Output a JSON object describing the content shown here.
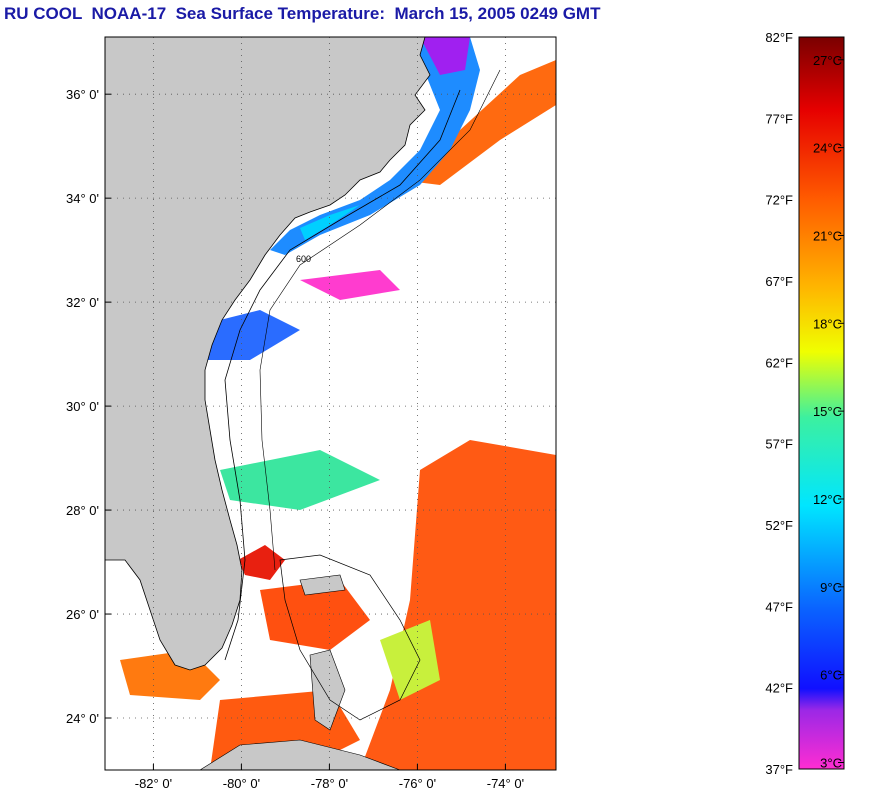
{
  "title": "RU COOL  NOAA-17  Sea Surface Temperature:  March 15, 2005 0249 GMT",
  "map": {
    "lat_labels": [
      {
        "value": 36,
        "text": "36° 0'"
      },
      {
        "value": 34,
        "text": "34° 0'"
      },
      {
        "value": 32,
        "text": "32° 0'"
      },
      {
        "value": 30,
        "text": "30° 0'"
      },
      {
        "value": 28,
        "text": "28° 0'"
      },
      {
        "value": 26,
        "text": "26° 0'"
      },
      {
        "value": 24,
        "text": "24° 0'"
      }
    ],
    "lon_labels": [
      {
        "value": -82,
        "text": "-82° 0'"
      },
      {
        "value": -80,
        "text": "-80° 0'"
      },
      {
        "value": -78,
        "text": "-78° 0'"
      },
      {
        "value": -76,
        "text": "-76° 0'"
      },
      {
        "value": -74,
        "text": "-74° 0'"
      }
    ],
    "lat_range": [
      23.0,
      37.1
    ],
    "lon_range": [
      -83.1,
      -72.85
    ],
    "isobath_label": "600",
    "colors": {
      "land": "#c8c8c8",
      "cloud": "#ffffff",
      "gulf_stream": "#ff5a14",
      "shelf": "#1e8cff"
    }
  },
  "colorbar": {
    "fahrenheit": [
      {
        "value": 82,
        "text": "82°F"
      },
      {
        "value": 77,
        "text": "77°F"
      },
      {
        "value": 72,
        "text": "72°F"
      },
      {
        "value": 67,
        "text": "67°F"
      },
      {
        "value": 62,
        "text": "62°F"
      },
      {
        "value": 57,
        "text": "57°F"
      },
      {
        "value": 52,
        "text": "52°F"
      },
      {
        "value": 47,
        "text": "47°F"
      },
      {
        "value": 42,
        "text": "42°F"
      },
      {
        "value": 37,
        "text": "37°F"
      }
    ],
    "celsius": [
      {
        "value": 27,
        "text": "27°C"
      },
      {
        "value": 24,
        "text": "24°C"
      },
      {
        "value": 21,
        "text": "21°C"
      },
      {
        "value": 18,
        "text": "18°C"
      },
      {
        "value": 15,
        "text": "15°C"
      },
      {
        "value": 12,
        "text": "12°C"
      },
      {
        "value": 9,
        "text": "9°C"
      },
      {
        "value": 6,
        "text": "6°C"
      },
      {
        "value": 3,
        "text": "3°C"
      }
    ],
    "range_f": [
      37,
      82
    ]
  }
}
